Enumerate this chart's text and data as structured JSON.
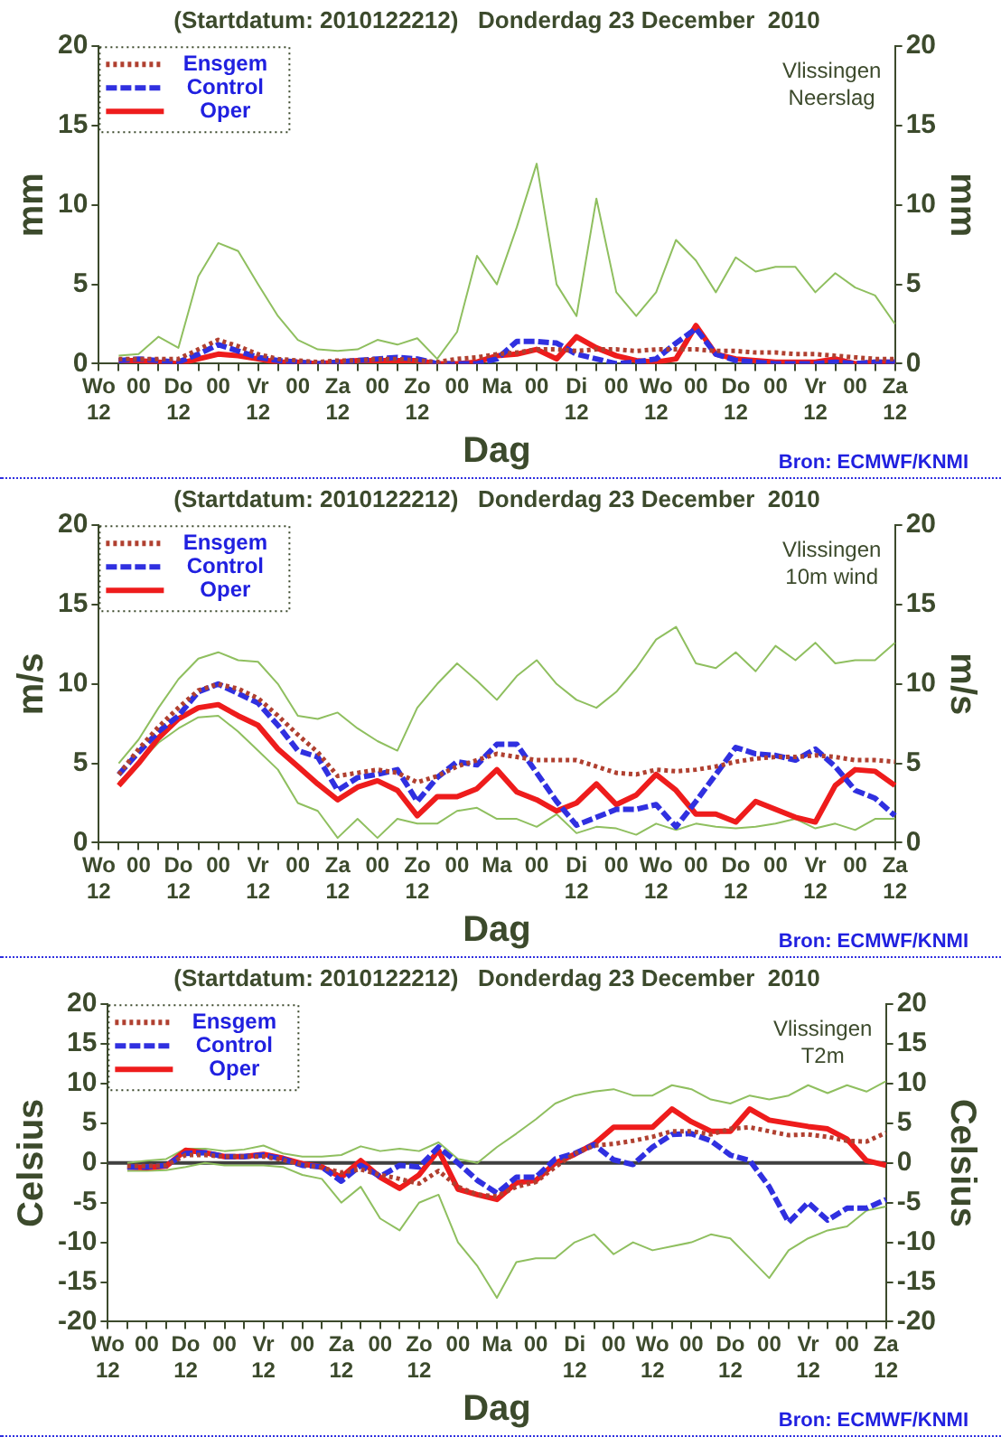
{
  "chart_data": [
    {
      "type": "line",
      "title": "(Startdatum: 2010122212)   Donderdag 23 December  2010",
      "xlabel": "Dag",
      "ylabel": "mm",
      "y2label": "mm",
      "annotations": [
        "Vlissingen",
        "Neerslag",
        "Bron: ECMWF/KNMI"
      ],
      "categories": [
        "Wo\n12",
        null,
        "00",
        null,
        "Do\n12",
        null,
        "00",
        null,
        "Vr\n12",
        null,
        "00",
        null,
        "Za\n12",
        null,
        "00",
        null,
        "Zo\n12",
        null,
        "00",
        null,
        "Ma",
        null,
        "00",
        null,
        "Di\n12",
        null,
        "00",
        null,
        "Wo\n12",
        null,
        "00",
        null,
        "Do\n12",
        null,
        "00",
        null,
        "Vr\n12",
        null,
        "00",
        null,
        "Za\n12"
      ],
      "ylim": [
        0,
        20
      ],
      "yticks": [
        0,
        5,
        10,
        15,
        20
      ],
      "y2lim": [
        0,
        20
      ],
      "y2ticks": [
        0,
        5,
        10,
        15,
        20
      ],
      "grid": false,
      "legend": "top left",
      "marker": "none",
      "series": [
        {
          "color": "#8fbf5f",
          "line_style": "solid",
          "values": [
            null,
            0.5,
            0.6,
            1.7,
            1.0,
            5.5,
            7.6,
            7.1,
            5.0,
            3.0,
            1.5,
            0.9,
            0.8,
            0.9,
            1.5,
            1.2,
            1.6,
            0.3,
            2.0,
            6.8,
            5.0,
            8.6,
            12.6,
            5.0,
            3.0,
            10.4,
            4.5,
            3.0,
            4.5,
            7.8,
            6.5,
            4.5,
            6.7,
            5.8,
            6.1,
            6.1,
            4.5,
            5.7,
            4.8,
            4.3,
            2.5
          ]
        },
        {
          "name": "Ensgem",
          "color": "#b04030",
          "line_style": "dotted",
          "values": [
            null,
            0.3,
            0.3,
            0.3,
            0.3,
            0.9,
            1.5,
            1.1,
            0.6,
            0.3,
            0.2,
            0.1,
            0.2,
            0.2,
            0.3,
            0.3,
            0.2,
            0.1,
            0.3,
            0.4,
            0.6,
            0.7,
            0.9,
            0.9,
            0.8,
            0.9,
            0.9,
            0.8,
            0.9,
            0.9,
            0.9,
            0.8,
            0.8,
            0.7,
            0.7,
            0.6,
            0.6,
            0.5,
            0.4,
            0.3,
            0.3
          ]
        },
        {
          "name": "Control",
          "color": "#3030e0",
          "line_style": "dashed",
          "values": [
            null,
            0.2,
            0.3,
            0.2,
            0.1,
            0.6,
            1.2,
            0.8,
            0.4,
            0.2,
            0.1,
            0.0,
            0.1,
            0.2,
            0.3,
            0.4,
            0.3,
            0.0,
            0.0,
            0.0,
            0.3,
            1.4,
            1.4,
            1.3,
            0.6,
            0.3,
            0.0,
            0.1,
            0.3,
            1.3,
            2.2,
            0.6,
            0.2,
            0.1,
            0.0,
            0.0,
            0.0,
            0.1,
            0.0,
            0.1,
            0.1
          ]
        },
        {
          "name": "Oper",
          "color": "#ee1c1c",
          "line_style": "solid",
          "values": [
            null,
            0.2,
            0.2,
            0.1,
            0.0,
            0.3,
            0.6,
            0.5,
            0.3,
            0.1,
            0.1,
            0.0,
            0.1,
            0.2,
            0.2,
            0.2,
            0.2,
            0.0,
            0.0,
            0.1,
            0.5,
            0.6,
            0.9,
            0.3,
            1.7,
            1.0,
            0.5,
            0.2,
            0.1,
            0.3,
            2.4,
            0.6,
            0.3,
            0.2,
            0.1,
            0.1,
            0.1,
            0.3,
            0.0,
            0.1,
            0.1
          ]
        }
      ]
    },
    {
      "type": "line",
      "title": "(Startdatum: 2010122212)   Donderdag 23 December  2010",
      "xlabel": "Dag",
      "ylabel": "m/s",
      "y2label": "m/s",
      "annotations": [
        "Vlissingen",
        "10m wind",
        "Bron: ECMWF/KNMI"
      ],
      "categories": [
        "Wo\n12",
        null,
        "00",
        null,
        "Do\n12",
        null,
        "00",
        null,
        "Vr\n12",
        null,
        "00",
        null,
        "Za\n12",
        null,
        "00",
        null,
        "Zo\n12",
        null,
        "00",
        null,
        "Ma",
        null,
        "00",
        null,
        "Di\n12",
        null,
        "00",
        null,
        "Wo\n12",
        null,
        "00",
        null,
        "Do\n12",
        null,
        "00",
        null,
        "Vr\n12",
        null,
        "00",
        null,
        "Za\n12"
      ],
      "ylim": [
        0,
        20
      ],
      "yticks": [
        0,
        5,
        10,
        15,
        20
      ],
      "y2lim": [
        0,
        20
      ],
      "y2ticks": [
        0,
        5,
        10,
        15,
        20
      ],
      "grid": false,
      "legend": "top left",
      "marker": "none",
      "series": [
        {
          "color": "#8fbf5f",
          "line_style": "solid",
          "values": [
            null,
            5,
            6.5,
            8.5,
            10.3,
            11.6,
            12.0,
            11.5,
            11.4,
            10,
            8,
            7.8,
            8.2,
            7.2,
            6.4,
            5.8,
            8.5,
            10,
            11.3,
            10.2,
            9,
            10.5,
            11.5,
            10,
            9,
            8.5,
            9.5,
            11,
            12.8,
            13.6,
            11.3,
            11,
            12,
            10.8,
            12.4,
            11.5,
            12.6,
            11.3,
            11.5,
            11.5,
            12.6
          ]
        },
        {
          "color": "#8fbf5f",
          "line_style": "solid",
          "values": [
            null,
            3.8,
            5,
            6.3,
            7.2,
            7.9,
            8,
            7.0,
            5.8,
            4.6,
            2.5,
            2,
            0.3,
            1.5,
            0.3,
            1.5,
            1.2,
            1.2,
            2,
            2.2,
            1.5,
            1.5,
            1.0,
            1.8,
            0.6,
            1.0,
            0.9,
            0.5,
            1.2,
            0.8,
            1.2,
            1.0,
            0.9,
            1.0,
            1.2,
            1.5,
            0.9,
            1.2,
            0.8,
            1.5,
            1.5
          ]
        },
        {
          "name": "Ensgem",
          "color": "#b04030",
          "line_style": "dotted",
          "values": [
            null,
            4.3,
            5.9,
            7.3,
            8.5,
            9.6,
            10.0,
            9.7,
            9.1,
            8.0,
            6.8,
            5.7,
            4.2,
            4.4,
            4.6,
            4.4,
            3.8,
            4.2,
            4.8,
            5.2,
            5.6,
            5.4,
            5.2,
            5.2,
            5.2,
            4.8,
            4.4,
            4.3,
            4.6,
            4.5,
            4.6,
            4.8,
            5.1,
            5.3,
            5.4,
            5.4,
            5.5,
            5.4,
            5.2,
            5.2,
            5.1
          ]
        },
        {
          "name": "Control",
          "color": "#3030e0",
          "line_style": "dashed",
          "values": [
            null,
            4.3,
            5.7,
            7.0,
            8.0,
            9.5,
            10.0,
            9.4,
            8.8,
            7.4,
            5.8,
            5.4,
            3.3,
            4.1,
            4.3,
            4.6,
            2.6,
            4.1,
            5.1,
            4.9,
            6.2,
            6.2,
            4.4,
            2.6,
            1.1,
            1.6,
            2.1,
            2.1,
            2.4,
            1.0,
            2.6,
            4.3,
            6.0,
            5.6,
            5.5,
            5.2,
            5.9,
            4.8,
            3.3,
            2.8,
            1.7
          ]
        },
        {
          "name": "Oper",
          "color": "#ee1c1c",
          "line_style": "solid",
          "values": [
            null,
            3.6,
            5.0,
            6.6,
            7.8,
            8.5,
            8.7,
            8.0,
            7.4,
            5.9,
            4.8,
            3.7,
            2.7,
            3.5,
            3.9,
            3.3,
            1.7,
            2.9,
            2.9,
            3.4,
            4.6,
            3.2,
            2.7,
            2.0,
            2.5,
            3.7,
            2.4,
            3.0,
            4.3,
            3.3,
            1.8,
            1.8,
            1.3,
            2.6,
            2.1,
            1.6,
            1.3,
            3.6,
            4.6,
            4.5,
            3.6
          ]
        }
      ]
    },
    {
      "type": "line",
      "title": "(Startdatum: 2010122212)   Donderdag 23 December  2010",
      "xlabel": "Dag",
      "ylabel": "Celsius",
      "y2label": "Celsius",
      "annotations": [
        "Vlissingen",
        "T2m",
        "Bron: ECMWF/KNMI"
      ],
      "categories": [
        "Wo\n12",
        null,
        "00",
        null,
        "Do\n12",
        null,
        "00",
        null,
        "Vr\n12",
        null,
        "00",
        null,
        "Za\n12",
        null,
        "00",
        null,
        "Zo\n12",
        null,
        "00",
        null,
        "Ma",
        null,
        "00",
        null,
        "Di\n12",
        null,
        "00",
        null,
        "Wo\n12",
        null,
        "00",
        null,
        "Do\n12",
        null,
        "00",
        null,
        "Vr\n12",
        null,
        "00",
        null,
        "Za\n12"
      ],
      "ylim": [
        -20,
        20
      ],
      "yticks": [
        -20,
        -15,
        -10,
        -5,
        0,
        5,
        10,
        15,
        20
      ],
      "y2lim": [
        -20,
        20
      ],
      "y2ticks": [
        -20,
        -15,
        -10,
        -5,
        0,
        5,
        10,
        15,
        20
      ],
      "grid": false,
      "legend": "top left",
      "marker": "none",
      "ref_lines": [
        {
          "axis": "y",
          "value": 0,
          "color": "#404040"
        }
      ],
      "series": [
        {
          "color": "#8fbf5f",
          "line_style": "solid",
          "values": [
            null,
            0,
            0.3,
            0.5,
            1.8,
            1.8,
            1.5,
            1.7,
            2.2,
            1.2,
            0.8,
            0.8,
            1.0,
            2.1,
            1.5,
            1.8,
            1.5,
            2.6,
            0.5,
            0,
            2.0,
            3.7,
            5.5,
            7.5,
            8.5,
            9.0,
            9.3,
            8.5,
            8.5,
            9.8,
            9.3,
            8.0,
            7.5,
            8.5,
            8.0,
            8.5,
            9.8,
            8.8,
            9.8,
            9.0,
            10.3
          ]
        },
        {
          "color": "#8fbf5f",
          "line_style": "solid",
          "values": [
            null,
            -1,
            -1.0,
            -0.9,
            -0.5,
            0,
            -0.3,
            -0.3,
            -0.3,
            -0.5,
            -1.5,
            -2.0,
            -5.0,
            -3.0,
            -7.0,
            -8.5,
            -5.0,
            -4.0,
            -10,
            -13.0,
            -17.0,
            -12.5,
            -12.0,
            -12.0,
            -10.0,
            -9.0,
            -11.5,
            -10,
            -11,
            -10.5,
            -10.0,
            -9.0,
            -9.5,
            -12.0,
            -14.5,
            -11.0,
            -9.5,
            -8.5,
            -8.0,
            -6.0,
            -5.5
          ]
        },
        {
          "name": "Ensgem",
          "color": "#b04030",
          "line_style": "dotted",
          "values": [
            null,
            -0.4,
            -0.4,
            -0.3,
            1.0,
            1.0,
            0.8,
            0.8,
            0.8,
            0.4,
            -0.2,
            -0.6,
            -1.2,
            -0.8,
            -1.5,
            -2.0,
            -2.6,
            -1.0,
            -3.0,
            -4.0,
            -4.2,
            -3.0,
            -2.4,
            -0.5,
            1.2,
            2.2,
            2.4,
            2.8,
            3.3,
            4.0,
            4.0,
            3.6,
            4.3,
            4.5,
            4.0,
            3.5,
            3.6,
            3.3,
            2.8,
            2.7,
            3.8
          ]
        },
        {
          "name": "Control",
          "color": "#3030e0",
          "line_style": "dashed",
          "values": [
            null,
            -0.5,
            -0.5,
            -0.3,
            1.2,
            1.3,
            0.8,
            0.8,
            1.0,
            0.5,
            -0.3,
            -0.5,
            -2.3,
            -0.3,
            -1.7,
            -0.3,
            -0.5,
            2.0,
            0.0,
            -2.2,
            -3.8,
            -1.8,
            -1.8,
            0.5,
            1.2,
            2.3,
            0.4,
            -0.2,
            2.0,
            3.6,
            3.7,
            2.8,
            1.0,
            0.3,
            -3.0,
            -7.5,
            -5.0,
            -7.2,
            -5.7,
            -5.7,
            -4.6
          ]
        },
        {
          "name": "Oper",
          "color": "#ee1c1c",
          "line_style": "solid",
          "values": [
            null,
            -0.5,
            -0.6,
            -0.4,
            1.6,
            1.3,
            0.8,
            0.8,
            1.1,
            0.6,
            -0.1,
            -0.5,
            -1.8,
            0.3,
            -1.8,
            -3.2,
            -1.5,
            1.6,
            -3.3,
            -4.0,
            -4.6,
            -2.5,
            -2.2,
            0.0,
            1.1,
            2.4,
            4.5,
            4.5,
            4.5,
            6.8,
            5.2,
            4.0,
            4.0,
            6.8,
            5.4,
            5.0,
            4.6,
            4.3,
            3.0,
            0.3,
            -0.3
          ]
        }
      ]
    }
  ]
}
